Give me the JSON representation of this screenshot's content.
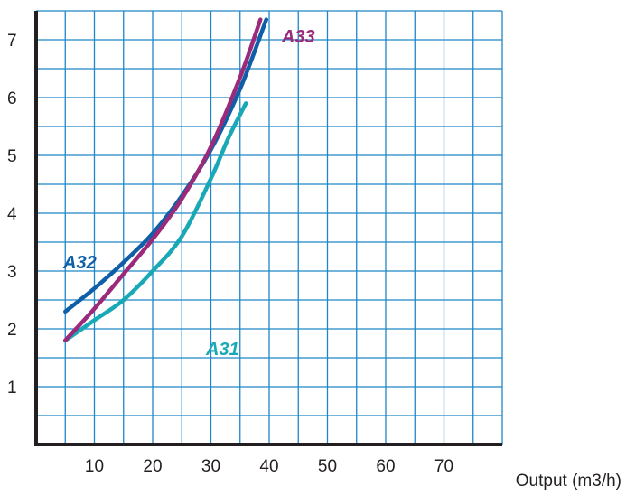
{
  "chart_data": {
    "type": "line",
    "title": "",
    "xlabel": "Output (m3/h)",
    "ylabel": "",
    "xlim": [
      0,
      80
    ],
    "ylim": [
      0,
      7.5
    ],
    "x_ticks": [
      10,
      20,
      30,
      40,
      50,
      60,
      70
    ],
    "y_ticks": [
      1,
      2,
      3,
      4,
      5,
      6,
      7
    ],
    "grid": true,
    "colors": {
      "grid": "#1e86c8",
      "axis": "#231f20"
    },
    "series": [
      {
        "name": "A31",
        "color": "#19a9b6",
        "x": [
          5,
          10,
          15,
          20,
          25,
          30,
          33,
          36
        ],
        "y": [
          1.8,
          2.15,
          2.5,
          3.0,
          3.6,
          4.6,
          5.3,
          5.9
        ]
      },
      {
        "name": "A32",
        "color": "#0f5fa8",
        "x": [
          5,
          10,
          15,
          20,
          25,
          30,
          35,
          39.5
        ],
        "y": [
          2.3,
          2.7,
          3.15,
          3.65,
          4.3,
          5.1,
          6.15,
          7.35
        ]
      },
      {
        "name": "A33",
        "color": "#9b2a7a",
        "x": [
          5,
          10,
          15,
          20,
          25,
          30,
          35,
          38.5
        ],
        "y": [
          1.8,
          2.35,
          2.95,
          3.55,
          4.25,
          5.15,
          6.35,
          7.35
        ]
      }
    ]
  }
}
